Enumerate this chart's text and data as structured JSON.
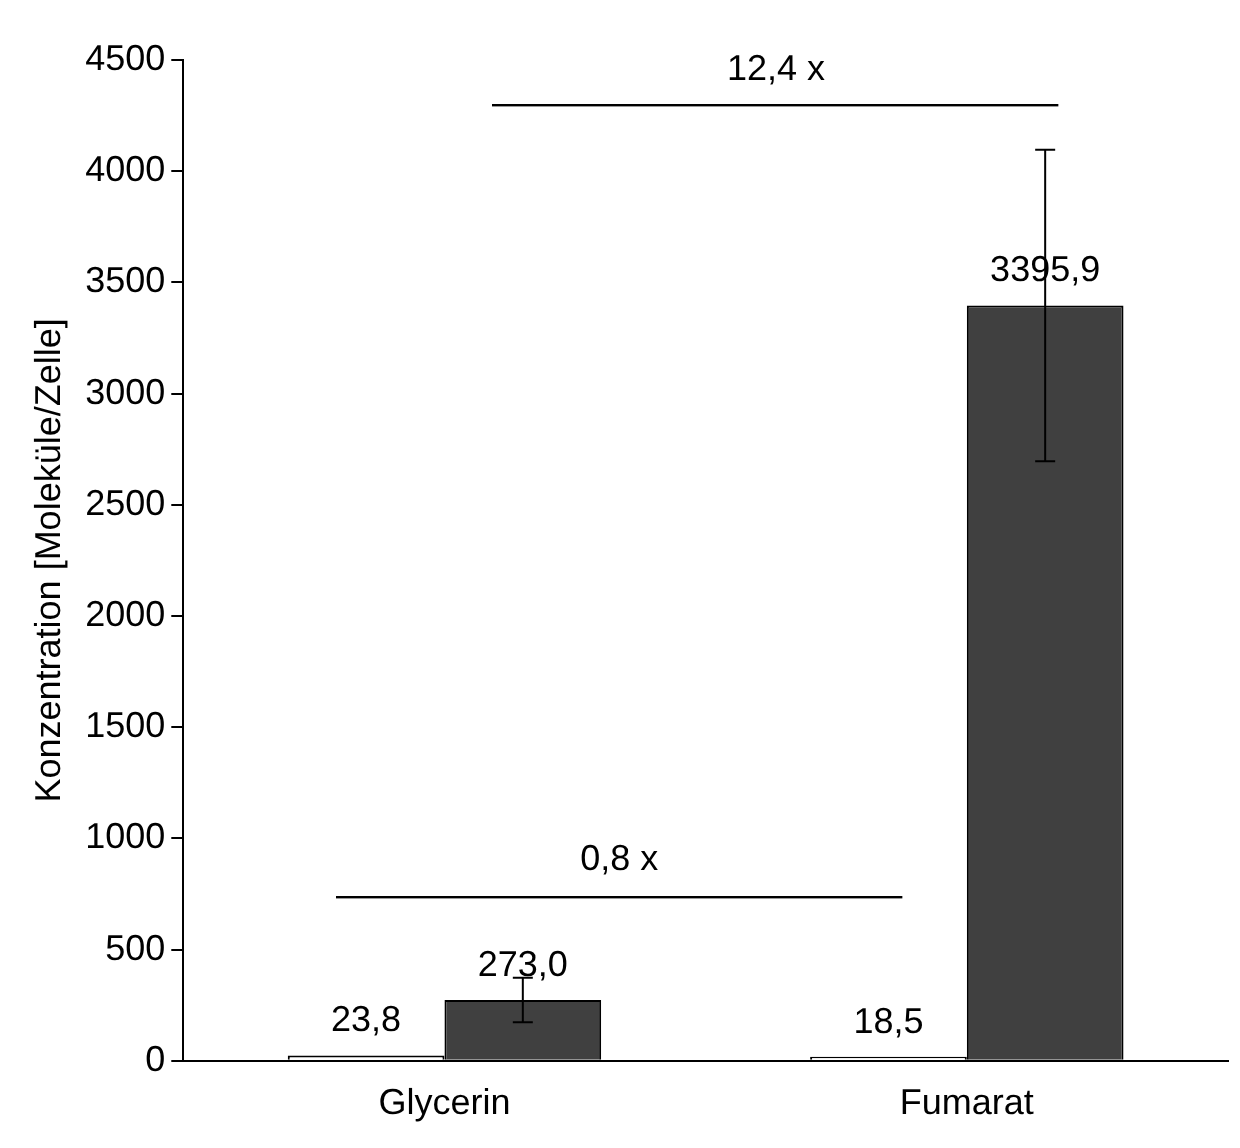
{
  "chart_data": {
    "type": "bar",
    "ylabel": "Konzentration [Moleküle/Zelle]",
    "categories": [
      "Glycerin",
      "Fumarat"
    ],
    "series": [
      {
        "color": "#ffffff",
        "values": [
          23.8,
          18.5
        ],
        "errors": [
          null,
          null
        ],
        "value_labels": [
          "23,8",
          "18,5"
        ]
      },
      {
        "color": "#404040",
        "values": [
          273.0,
          3395.9
        ],
        "errors": [
          100,
          700
        ],
        "value_labels": [
          "273,0",
          "3395,9"
        ]
      }
    ],
    "ylim": [
      0,
      4500
    ],
    "yticks": [
      0,
      500,
      1000,
      1500,
      2000,
      2500,
      3000,
      3500,
      4000,
      4500
    ],
    "grid": false,
    "legend": false,
    "annotations": [
      "0,8 x",
      "12,4 x"
    ]
  }
}
